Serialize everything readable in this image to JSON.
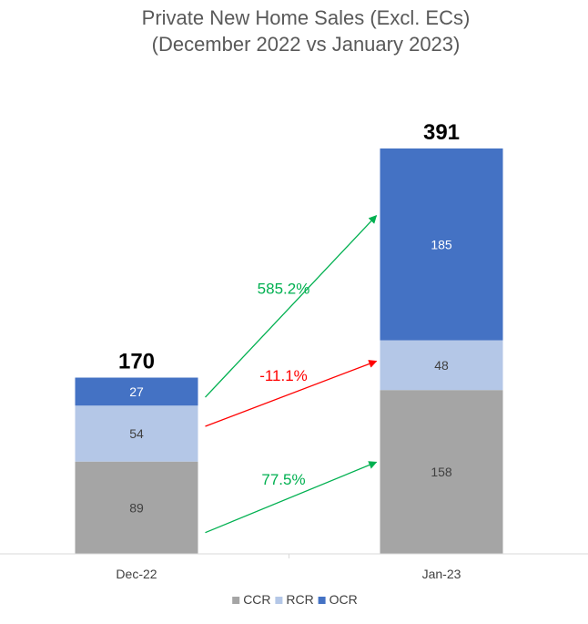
{
  "chart_data": {
    "type": "bar",
    "stacked": true,
    "title_lines": [
      "Private New Home Sales (Excl. ECs)",
      "(December 2022 vs January 2023)"
    ],
    "categories": [
      "Dec-22",
      "Jan-23"
    ],
    "series": [
      {
        "name": "CCR",
        "values": [
          89,
          158
        ],
        "color": "#a5a5a5",
        "label_color": "#404040"
      },
      {
        "name": "RCR",
        "values": [
          54,
          48
        ],
        "color": "#b4c7e7",
        "label_color": "#404040"
      },
      {
        "name": "OCR",
        "values": [
          27,
          185
        ],
        "color": "#4472c4",
        "label_color": "#ffffff"
      }
    ],
    "totals": [
      "170",
      "391"
    ],
    "ylim": [
      0,
      391
    ],
    "grid": false,
    "legend_position": "bottom",
    "annotations": [
      {
        "series": "OCR",
        "text": "585.2%",
        "color": "#00b050"
      },
      {
        "series": "RCR",
        "text": "-11.1%",
        "color": "#ff0000"
      },
      {
        "series": "CCR",
        "text": "77.5%",
        "color": "#00b050"
      }
    ]
  }
}
